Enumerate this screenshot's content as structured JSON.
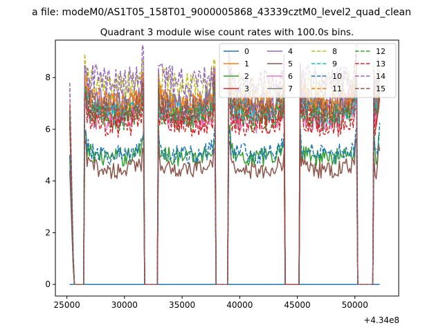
{
  "figure": {
    "suptitle": "a file: modeM0/AS1T05_158T01_9000005868_43339cztM0_level2_quad_clean"
  },
  "chart_data": {
    "type": "line",
    "title": "Quadrant 3 module wise count rates with 100.0s bins.",
    "xlabel": "",
    "ylabel": "",
    "x_offset_text": "+4.34e8",
    "xlim": [
      24000,
      53800
    ],
    "ylim": [
      -0.45,
      9.45
    ],
    "xticks": [
      25000,
      30000,
      35000,
      40000,
      45000,
      50000
    ],
    "xtick_labels": [
      "25000",
      "30000",
      "35000",
      "40000",
      "45000",
      "50000"
    ],
    "yticks": [
      0,
      2,
      4,
      6,
      8
    ],
    "ytick_labels": [
      "0",
      "2",
      "4",
      "6",
      "8"
    ],
    "grid": false,
    "legend": {
      "placement": "top-right",
      "ncol": 4
    },
    "segments": [
      [
        25250,
        25550
      ],
      [
        26550,
        31650
      ],
      [
        32900,
        37850
      ],
      [
        39050,
        43900
      ],
      [
        45200,
        50150
      ],
      [
        51600,
        52150
      ]
    ],
    "series": [
      {
        "name": "0",
        "color": "#1f77b4",
        "dash": "solid",
        "level": 0
      },
      {
        "name": "1",
        "color": "#ff7f0e",
        "dash": "solid",
        "level": 6.8
      },
      {
        "name": "2",
        "color": "#2ca02c",
        "dash": "solid",
        "level": 4.9
      },
      {
        "name": "3",
        "color": "#d62728",
        "dash": "solid",
        "level": 6.5
      },
      {
        "name": "4",
        "color": "#9467bd",
        "dash": "solid",
        "level": 7.0
      },
      {
        "name": "5",
        "color": "#8c564b",
        "dash": "solid",
        "level": 4.4
      },
      {
        "name": "6",
        "color": "#e377c2",
        "dash": "solid",
        "level": 6.3
      },
      {
        "name": "7",
        "color": "#7f7f7f",
        "dash": "solid",
        "level": 6.9
      },
      {
        "name": "8",
        "color": "#bcbd22",
        "dash": "dashed",
        "level": 7.6
      },
      {
        "name": "9",
        "color": "#17becf",
        "dash": "dashed",
        "level": 6.6
      },
      {
        "name": "10",
        "color": "#1f77b4",
        "dash": "dashed",
        "level": 5.0
      },
      {
        "name": "11",
        "color": "#ff7f0e",
        "dash": "dashed",
        "level": 7.0
      },
      {
        "name": "12",
        "color": "#2ca02c",
        "dash": "dashed",
        "level": 6.4
      },
      {
        "name": "13",
        "color": "#d62728",
        "dash": "dashed",
        "level": 6.1
      },
      {
        "name": "14",
        "color": "#9467bd",
        "dash": "dashed",
        "level": 7.8
      },
      {
        "name": "15",
        "color": "#8c564b",
        "dash": "dashed",
        "level": 6.7
      }
    ]
  }
}
